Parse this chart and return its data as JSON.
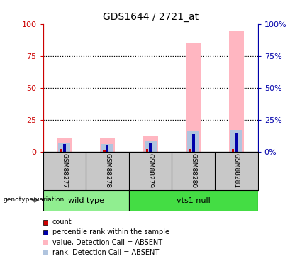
{
  "title": "GDS1644 / 2721_at",
  "samples": [
    "GSM88277",
    "GSM88278",
    "GSM88279",
    "GSM88280",
    "GSM88281"
  ],
  "value_bars": [
    11,
    11,
    12,
    85,
    95
  ],
  "rank_bars": [
    7,
    6,
    8,
    16,
    17
  ],
  "count_bars": [
    2,
    1,
    2,
    2,
    2
  ],
  "percentile_bars": [
    6,
    5,
    7,
    14,
    15
  ],
  "value_color": "#FFB6C1",
  "rank_color": "#B0C4DE",
  "count_color": "#CC0000",
  "percentile_color": "#0000AA",
  "ylim": [
    0,
    100
  ],
  "yticks": [
    0,
    25,
    50,
    75,
    100
  ],
  "left_axis_color": "#CC0000",
  "right_axis_color": "#0000AA",
  "title_fontsize": 10,
  "wt_color": "#90EE90",
  "vts_color": "#44DD44",
  "sample_bg": "#C8C8C8",
  "legend_items": [
    {
      "label": "count",
      "color": "#CC0000"
    },
    {
      "label": "percentile rank within the sample",
      "color": "#0000AA"
    },
    {
      "label": "value, Detection Call = ABSENT",
      "color": "#FFB6C1"
    },
    {
      "label": "rank, Detection Call = ABSENT",
      "color": "#B0C4DE"
    }
  ]
}
